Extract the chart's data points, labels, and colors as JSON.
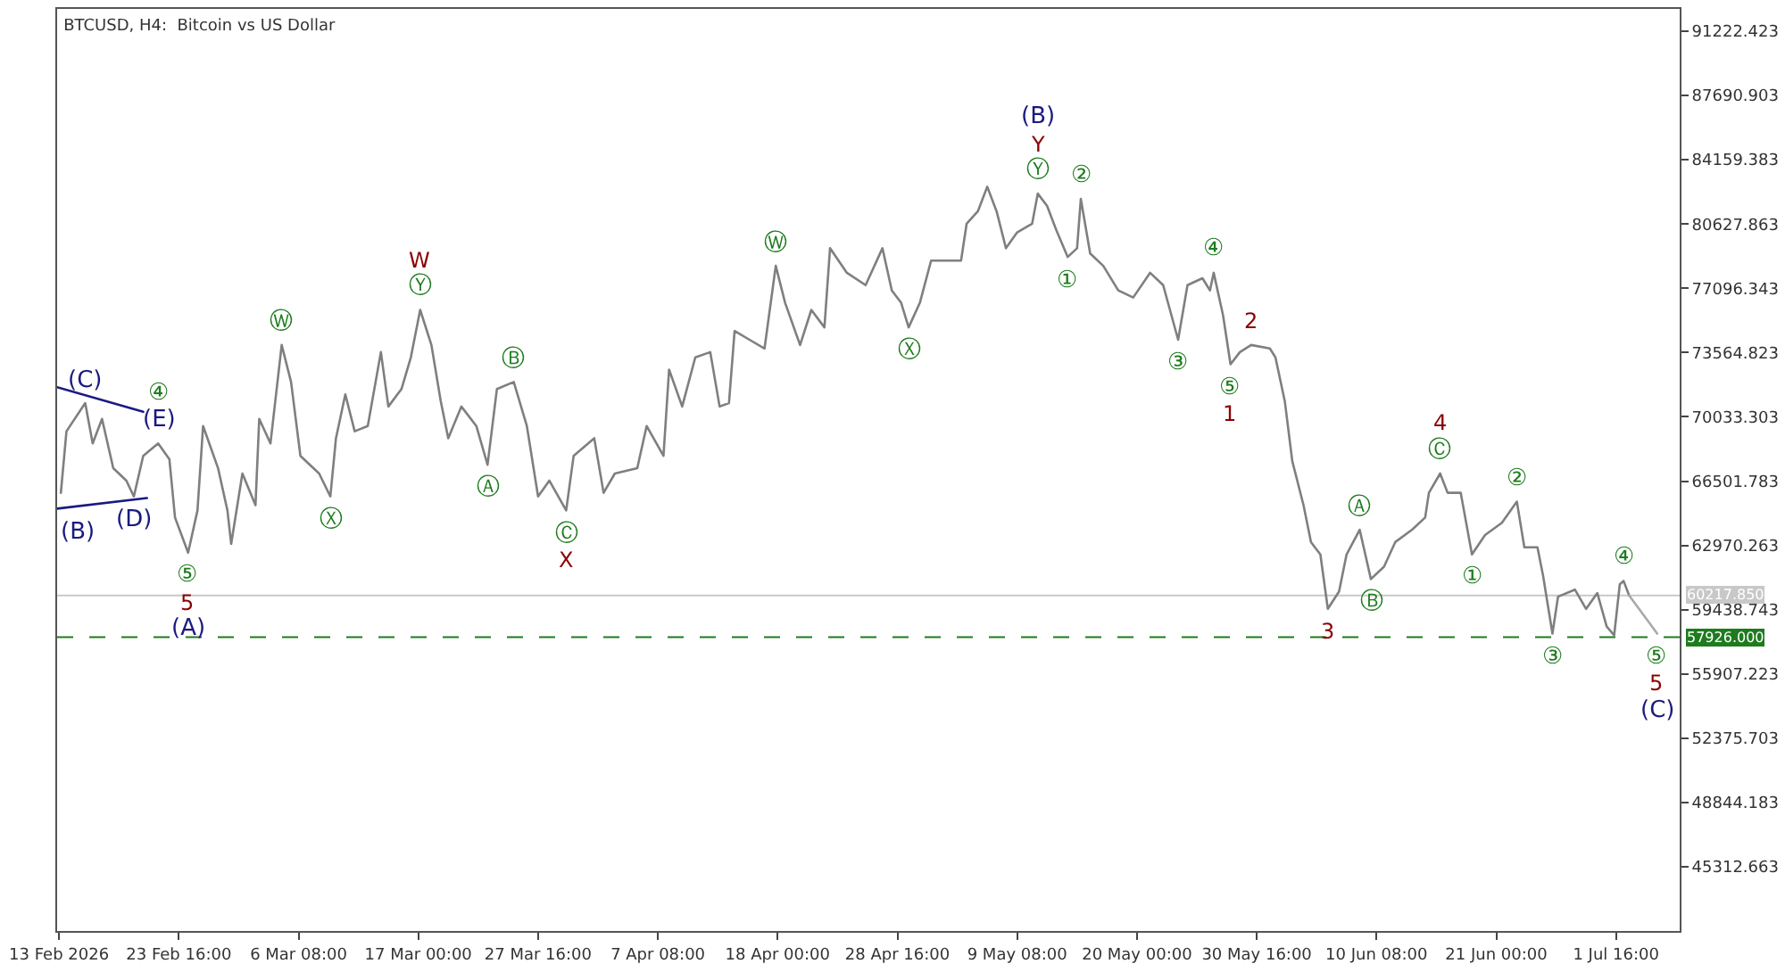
{
  "chart_data": {
    "type": "line",
    "title": "BTCUSD, H4:  Bitcoin vs US Dollar",
    "series": [
      {
        "color": "#7f7f7f",
        "x": [
          "2026-02-13T04:00",
          "2026-02-13T16:00",
          "2026-02-15T08:00",
          "2026-02-16T00:00",
          "2026-02-16T20:00",
          "2026-02-17T20:00",
          "2026-02-19T00:00",
          "2026-02-19T16:00",
          "2026-02-20T12:00",
          "2026-02-21T20:00",
          "2026-02-22T20:00",
          "2026-02-23T08:00",
          "2026-02-24T12:00",
          "2026-02-25T08:00",
          "2026-02-25T20:00",
          "2026-02-27T04:00",
          "2026-02-28T00:00",
          "2026-02-28T08:00",
          "2026-03-01T08:00",
          "2026-03-02T12:00",
          "2026-03-02T20:00",
          "2026-03-03T20:00",
          "2026-03-04T20:00",
          "2026-03-05T16:00",
          "2026-03-06T12:00",
          "2026-03-08T04:00",
          "2026-03-09T04:00",
          "2026-03-09T16:00",
          "2026-03-10T12:00",
          "2026-03-11T08:00",
          "2026-03-12T12:00",
          "2026-03-13T16:00",
          "2026-03-14T08:00",
          "2026-03-15T12:00",
          "2026-03-16T08:00",
          "2026-03-17T04:00",
          "2026-03-18T04:00",
          "2026-03-19T00:00",
          "2026-03-19T16:00",
          "2026-03-20T20:00",
          "2026-03-22T04:00",
          "2026-03-23T04:00",
          "2026-03-24T00:00",
          "2026-03-25T12:00",
          "2026-03-26T16:00",
          "2026-03-27T16:00",
          "2026-03-28T16:00",
          "2026-03-30T04:00",
          "2026-03-30T20:00",
          "2026-04-01T16:00",
          "2026-04-02T12:00",
          "2026-04-03T12:00",
          "2026-04-05T12:00",
          "2026-04-06T08:00",
          "2026-04-07T20:00",
          "2026-04-08T08:00",
          "2026-04-09T12:00",
          "2026-04-10T16:00",
          "2026-04-12T00:00",
          "2026-04-12T20:00",
          "2026-04-13T16:00",
          "2026-04-14T04:00",
          "2026-04-15T12:00",
          "2026-04-16T20:00",
          "2026-04-17T20:00",
          "2026-04-18T16:00",
          "2026-04-20T00:00",
          "2026-04-21T00:00",
          "2026-04-22T04:00",
          "2026-04-22T16:00",
          "2026-04-24T04:00",
          "2026-04-25T20:00",
          "2026-04-27T08:00",
          "2026-04-28T04:00",
          "2026-04-29T00:00",
          "2026-04-29T16:00",
          "2026-04-30T16:00",
          "2026-05-01T16:00",
          "2026-05-04T08:00",
          "2026-05-04T20:00",
          "2026-05-05T20:00",
          "2026-05-06T16:00",
          "2026-05-07T12:00",
          "2026-05-08T08:00",
          "2026-05-09T08:00",
          "2026-05-10T16:00",
          "2026-05-11T04:00",
          "2026-05-12T00:00",
          "2026-05-12T20:00",
          "2026-05-13T20:00",
          "2026-05-14T16:00",
          "2026-05-15T00:00",
          "2026-05-15T20:00",
          "2026-05-17T00:00",
          "2026-05-18T08:00",
          "2026-05-19T16:00",
          "2026-05-21T04:00",
          "2026-05-22T08:00",
          "2026-05-23T16:00",
          "2026-05-24T12:00",
          "2026-05-25T20:00",
          "2026-05-26T12:00",
          "2026-05-26T20:00",
          "2026-05-27T16:00",
          "2026-05-28T08:00",
          "2026-05-29T04:00",
          "2026-05-30T04:00",
          "2026-05-31T20:00",
          "2026-06-01T08:00",
          "2026-06-02T04:00",
          "2026-06-02T20:00",
          "2026-06-03T20:00",
          "2026-06-04T12:00",
          "2026-06-05T08:00",
          "2026-06-06T00:00",
          "2026-06-07T00:00",
          "2026-06-07T16:00",
          "2026-06-08T20:00",
          "2026-06-09T20:00",
          "2026-06-11T00:00",
          "2026-06-12T00:00",
          "2026-06-13T12:00",
          "2026-06-14T16:00",
          "2026-06-15T00:00",
          "2026-06-16T00:00",
          "2026-06-16T16:00",
          "2026-06-17T20:00",
          "2026-06-18T20:00",
          "2026-06-20T00:00",
          "2026-06-21T12:00",
          "2026-06-22T20:00",
          "2026-06-23T12:00",
          "2026-06-24T16:00",
          "2026-06-25T04:00",
          "2026-06-26T00:00",
          "2026-06-26T12:00",
          "2026-06-28T00:00",
          "2026-06-29T00:00",
          "2026-06-30T00:00",
          "2026-06-30T20:00",
          "2026-07-01T12:00",
          "2026-07-02T00:00",
          "2026-07-02T08:00",
          "2026-07-02T20:00"
        ],
        "values": [
          65860,
          69240,
          70790,
          68570,
          69920,
          67210,
          66530,
          65660,
          67890,
          68570,
          67700,
          64500,
          62570,
          64890,
          69530,
          67210,
          64890,
          63050,
          66920,
          65180,
          69920,
          68570,
          73980,
          71950,
          67890,
          66920,
          65660,
          68860,
          71270,
          69240,
          69530,
          73590,
          70600,
          71560,
          73300,
          75910,
          73980,
          70890,
          68860,
          70600,
          69530,
          67400,
          71560,
          71950,
          69530,
          65660,
          66530,
          64890,
          67890,
          68860,
          65860,
          66920,
          67210,
          69530,
          67890,
          72630,
          70600,
          73300,
          73590,
          70600,
          70790,
          74750,
          74270,
          73790,
          78330,
          76300,
          73980,
          75910,
          74950,
          79300,
          77950,
          77270,
          79300,
          76980,
          76300,
          74950,
          76300,
          78620,
          78620,
          80650,
          81330,
          82680,
          81330,
          79300,
          80170,
          80650,
          82300,
          81620,
          80270,
          78820,
          79300,
          82010,
          79010,
          78330,
          76980,
          76590,
          77950,
          77270,
          74270,
          77270,
          77650,
          76980,
          77950,
          75620,
          72920,
          73590,
          73980,
          73790,
          73300,
          70890,
          67600,
          65180,
          63150,
          62470,
          59480,
          60440,
          62470,
          63830,
          61120,
          61800,
          63150,
          63830,
          64500,
          65860,
          66920,
          65860,
          65860,
          62470,
          63540,
          64210,
          65370,
          62860,
          62860,
          61310,
          58120,
          60150,
          60540,
          59480,
          60350,
          58510,
          58030,
          60830,
          61020,
          60220
        ]
      },
      {
        "color": "#1a1a80",
        "x": [
          "2026-02-12T20:00",
          "2026-02-20T12:00"
        ],
        "values": [
          71660,
          70310
        ]
      },
      {
        "color": "#1a1a80",
        "x": [
          "2026-02-12T20:00",
          "2026-02-20T20:00"
        ],
        "values": [
          64990,
          65570
        ]
      },
      {
        "color": "#a9a9a9",
        "x": [
          "2026-07-02T20:00",
          "2026-07-05T08:00"
        ],
        "values": [
          60220,
          58120
        ]
      }
    ],
    "xlim": [
      "2026-02-12T20:00",
      "2026-07-07T08:00"
    ],
    "xticks": [
      {
        "value": "2026-02-13T00:00",
        "label": "13 Feb 2026"
      },
      {
        "value": "2026-02-23T16:00",
        "label": "23 Feb 16:00"
      },
      {
        "value": "2026-03-06T08:00",
        "label": "6 Mar 08:00"
      },
      {
        "value": "2026-03-17T00:00",
        "label": "17 Mar 00:00"
      },
      {
        "value": "2026-03-27T16:00",
        "label": "27 Mar 16:00"
      },
      {
        "value": "2026-04-07T08:00",
        "label": "7 Apr 08:00"
      },
      {
        "value": "2026-04-18T00:00",
        "label": "18 Apr 00:00"
      },
      {
        "value": "2026-04-28T16:00",
        "label": "28 Apr 16:00"
      },
      {
        "value": "2026-05-09T08:00",
        "label": "9 May 08:00"
      },
      {
        "value": "2026-05-20T00:00",
        "label": "20 May 00:00"
      },
      {
        "value": "2026-05-30T16:00",
        "label": "30 May 16:00"
      },
      {
        "value": "2026-06-10T08:00",
        "label": "10 Jun 08:00"
      },
      {
        "value": "2026-06-21T00:00",
        "label": "21 Jun 00:00"
      },
      {
        "value": "2026-07-01T16:00",
        "label": "1 Jul 16:00"
      }
    ],
    "ylim": [
      41780,
      92450
    ],
    "yticks": [
      {
        "value": 45312.663,
        "label": "45312.663"
      },
      {
        "value": 48844.183,
        "label": "48844.183"
      },
      {
        "value": 52375.703,
        "label": "52375.703"
      },
      {
        "value": 55907.223,
        "label": "55907.223"
      },
      {
        "value": 59438.743,
        "label": "59438.743"
      },
      {
        "value": 62970.263,
        "label": "62970.263"
      },
      {
        "value": 66501.783,
        "label": "66501.783"
      },
      {
        "value": 70033.303,
        "label": "70033.303"
      },
      {
        "value": 73564.823,
        "label": "73564.823"
      },
      {
        "value": 77096.343,
        "label": "77096.343"
      },
      {
        "value": 80627.863,
        "label": "80627.863"
      },
      {
        "value": 84159.383,
        "label": "84159.383"
      },
      {
        "value": 87690.903,
        "label": "87690.903"
      },
      {
        "value": 91222.423,
        "label": "91222.423"
      }
    ],
    "ref_lines": [
      {
        "axis": "y",
        "value": 60217.85,
        "label": "60217.850",
        "color": "#c8c8c8",
        "line_style": "solid"
      },
      {
        "axis": "y",
        "value": 57926,
        "label": "57926.000",
        "color": "#1e7b1e",
        "line_style": "dashed"
      }
    ],
    "annotations": [
      {
        "text": "(B)",
        "x": "2026-02-12T20:00",
        "y": 64990
      },
      {
        "text": "(C)",
        "x": "2026-02-15T08:00",
        "y": 70790
      },
      {
        "text": "(D)",
        "x": "2026-02-19T16:00",
        "y": 65660
      },
      {
        "text": "(E)",
        "x": "2026-02-21T20:00",
        "y": 68570
      },
      {
        "text": "④",
        "x": "2026-02-21T20:00",
        "y": 68570
      },
      {
        "text": "⑤",
        "x": "2026-02-24T12:00",
        "y": 62570
      },
      {
        "text": "5",
        "x": "2026-02-24T12:00",
        "y": 62570
      },
      {
        "text": "(A)",
        "x": "2026-02-24T12:00",
        "y": 62570
      },
      {
        "text": "Ⓦ",
        "x": "2026-03-04T20:00",
        "y": 73980
      },
      {
        "text": "Ⓧ",
        "x": "2026-03-09T04:00",
        "y": 65660
      },
      {
        "text": "Ⓨ",
        "x": "2026-03-17T04:00",
        "y": 75910
      },
      {
        "text": "W",
        "x": "2026-03-17T04:00",
        "y": 75910
      },
      {
        "text": "Ⓐ",
        "x": "2026-03-23T04:00",
        "y": 67400
      },
      {
        "text": "Ⓑ",
        "x": "2026-03-25T12:00",
        "y": 71950
      },
      {
        "text": "Ⓒ",
        "x": "2026-03-30T04:00",
        "y": 64890
      },
      {
        "text": "X",
        "x": "2026-03-30T04:00",
        "y": 64890
      },
      {
        "text": "Ⓦ",
        "x": "2026-04-17T20:00",
        "y": 78330
      },
      {
        "text": "Ⓧ",
        "x": "2026-04-29T16:00",
        "y": 74950
      },
      {
        "text": "Ⓨ",
        "x": "2026-05-11T04:00",
        "y": 82300
      },
      {
        "text": "Y",
        "x": "2026-05-11T04:00",
        "y": 82300
      },
      {
        "text": "(B)",
        "x": "2026-05-11T04:00",
        "y": 82300
      },
      {
        "text": "①",
        "x": "2026-05-13T20:00",
        "y": 78820
      },
      {
        "text": "②",
        "x": "2026-05-15T00:00",
        "y": 82010
      },
      {
        "text": "③",
        "x": "2026-05-23T16:00",
        "y": 74270
      },
      {
        "text": "④",
        "x": "2026-05-26T20:00",
        "y": 77950
      },
      {
        "text": "⑤",
        "x": "2026-05-28T08:00",
        "y": 72920
      },
      {
        "text": "1",
        "x": "2026-05-28T08:00",
        "y": 72920
      },
      {
        "text": "2",
        "x": "2026-05-30T04:00",
        "y": 73980
      },
      {
        "text": "3",
        "x": "2026-06-06T00:00",
        "y": 59480
      },
      {
        "text": "Ⓐ",
        "x": "2026-06-08T20:00",
        "y": 63830
      },
      {
        "text": "Ⓑ",
        "x": "2026-06-09T20:00",
        "y": 61120
      },
      {
        "text": "Ⓒ",
        "x": "2026-06-16T00:00",
        "y": 66920
      },
      {
        "text": "4",
        "x": "2026-06-16T00:00",
        "y": 66920
      },
      {
        "text": "①",
        "x": "2026-06-18T20:00",
        "y": 62470
      },
      {
        "text": "②",
        "x": "2026-06-22T20:00",
        "y": 65370
      },
      {
        "text": "③",
        "x": "2026-06-26T00:00",
        "y": 58120
      },
      {
        "text": "④",
        "x": "2026-07-02T08:00",
        "y": 61020
      },
      {
        "text": "⑤",
        "x": "2026-07-05T08:00",
        "y": 58120
      },
      {
        "text": "5",
        "x": "2026-07-05T08:00",
        "y": 58120
      },
      {
        "text": "(C)",
        "x": "2026-07-05T08:00",
        "y": 58120
      }
    ]
  }
}
